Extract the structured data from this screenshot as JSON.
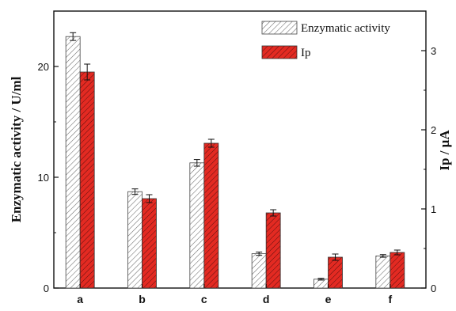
{
  "chart_data": {
    "type": "bar",
    "categories": [
      "a",
      "b",
      "c",
      "d",
      "e",
      "f"
    ],
    "series": [
      {
        "name": "Enzymatic activity",
        "axis": "left",
        "values": [
          22.7,
          8.7,
          11.3,
          3.1,
          0.8,
          2.9
        ],
        "errors": [
          0.35,
          0.25,
          0.3,
          0.15,
          0.08,
          0.12
        ],
        "fill": "hatched-white",
        "color": "#555555"
      },
      {
        "name": "Ip",
        "axis": "right",
        "values": [
          2.73,
          1.13,
          1.83,
          0.95,
          0.39,
          0.45
        ],
        "errors": [
          0.1,
          0.05,
          0.05,
          0.04,
          0.04,
          0.03
        ],
        "fill": "hatched-red",
        "color": "#e02020"
      }
    ],
    "ylabel": "Enzymatic activity / U/ml",
    "ylabel_right": "Ip / μA",
    "ylim": [
      0,
      25
    ],
    "ylim_right": [
      0,
      3.5
    ],
    "yticks": [
      0,
      10,
      20
    ],
    "yticks_right": [
      0,
      1,
      2,
      3
    ],
    "grid": false,
    "legend_position": "top-right"
  }
}
